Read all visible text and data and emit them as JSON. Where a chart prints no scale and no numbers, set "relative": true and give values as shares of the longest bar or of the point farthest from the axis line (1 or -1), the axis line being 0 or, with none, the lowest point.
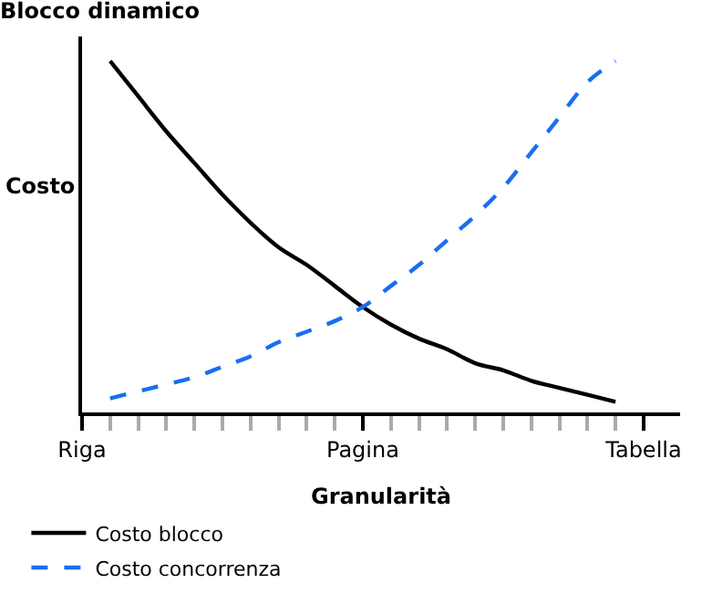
{
  "chart_data": {
    "type": "line",
    "title": "Blocco dinamico",
    "xlabel": "Granularità",
    "ylabel": "Costo",
    "relative": true,
    "categories": [
      "Riga",
      null,
      null,
      null,
      null,
      null,
      null,
      null,
      null,
      null,
      "Pagina",
      null,
      null,
      null,
      null,
      null,
      null,
      null,
      null,
      null,
      "Tabella"
    ],
    "series": [
      {
        "name": "Costo blocco",
        "color": "#000000",
        "line_style": "solid",
        "values": [
          null,
          1.0,
          0.9,
          0.8,
          0.71,
          0.62,
          0.54,
          0.47,
          0.42,
          0.36,
          0.3,
          0.25,
          0.21,
          0.18,
          0.14,
          0.12,
          0.09,
          0.07,
          0.05,
          0.03,
          null
        ]
      },
      {
        "name": "Costo concorrenza",
        "color": "#1a6ef0",
        "line_style": "dashed",
        "values": [
          null,
          0.04,
          0.06,
          0.08,
          0.1,
          0.13,
          0.16,
          0.2,
          0.23,
          0.26,
          0.3,
          0.36,
          0.42,
          0.49,
          0.56,
          0.64,
          0.74,
          0.84,
          0.94,
          1.0,
          null
        ]
      }
    ],
    "legend": "bottom left",
    "marker": "none"
  }
}
